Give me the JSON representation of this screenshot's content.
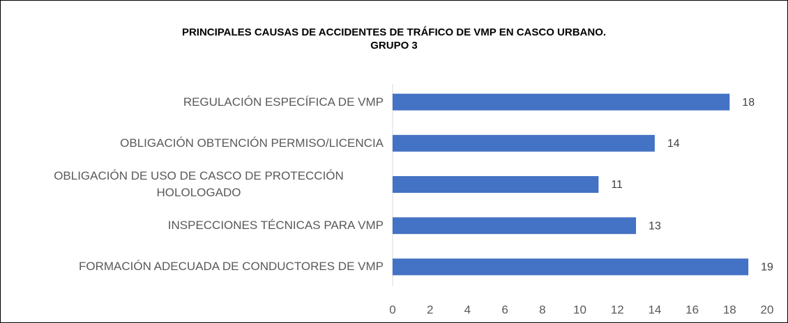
{
  "chart_data": {
    "type": "barh",
    "title": "PRINCIPALES CAUSAS DE ACCIDENTES DE TRÁFICO DE VMP EN CASCO URBANO.",
    "subtitle": "GRUPO 3",
    "categories": [
      "REGULACIÓN ESPECÍFICA DE VMP",
      "OBLIGACIÓN OBTENCIÓN PERMISO/LICENCIA",
      "OBLIGACIÓN DE USO DE CASCO DE PROTECCIÓN HOLOLOGADO",
      "INSPECCIONES TÉCNICAS PARA VMP",
      "FORMACIÓN ADECUADA DE CONDUCTORES DE VMP"
    ],
    "values": [
      18,
      14,
      11,
      13,
      19
    ],
    "color": "#4472c4",
    "xlim": [
      0,
      20
    ],
    "xticks": [
      0,
      2,
      4,
      6,
      8,
      10,
      12,
      14,
      16,
      18,
      20
    ],
    "grid": false
  }
}
